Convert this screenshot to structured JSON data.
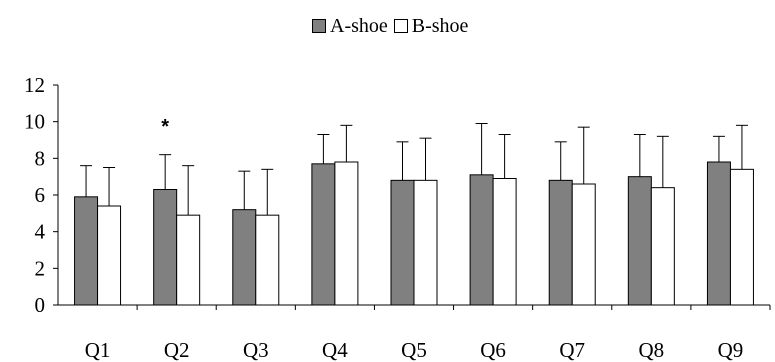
{
  "chart_data": {
    "type": "bar",
    "categories": [
      "Q1",
      "Q2",
      "Q3",
      "Q4",
      "Q5",
      "Q6",
      "Q7",
      "Q8",
      "Q9"
    ],
    "series": [
      {
        "name": "A-shoe",
        "color": "#808080",
        "values": [
          5.9,
          6.3,
          5.2,
          7.7,
          6.8,
          7.1,
          6.8,
          7.0,
          7.8
        ],
        "error": [
          1.7,
          1.9,
          2.1,
          1.6,
          2.1,
          2.8,
          2.1,
          2.3,
          1.4
        ]
      },
      {
        "name": "B-shoe",
        "color": "#ffffff",
        "values": [
          5.4,
          4.9,
          4.9,
          7.8,
          6.8,
          6.9,
          6.6,
          6.4,
          7.4
        ],
        "error": [
          2.1,
          2.7,
          2.5,
          2.0,
          2.3,
          2.4,
          3.1,
          2.8,
          2.4
        ]
      }
    ],
    "ylim": [
      0,
      12
    ],
    "yticks": [
      "0",
      "2",
      "4",
      "6",
      "8",
      "10",
      "12"
    ],
    "grid": false,
    "legend_position": "top-center",
    "annotations": [
      {
        "text": "*",
        "category": "Q2"
      }
    ]
  }
}
